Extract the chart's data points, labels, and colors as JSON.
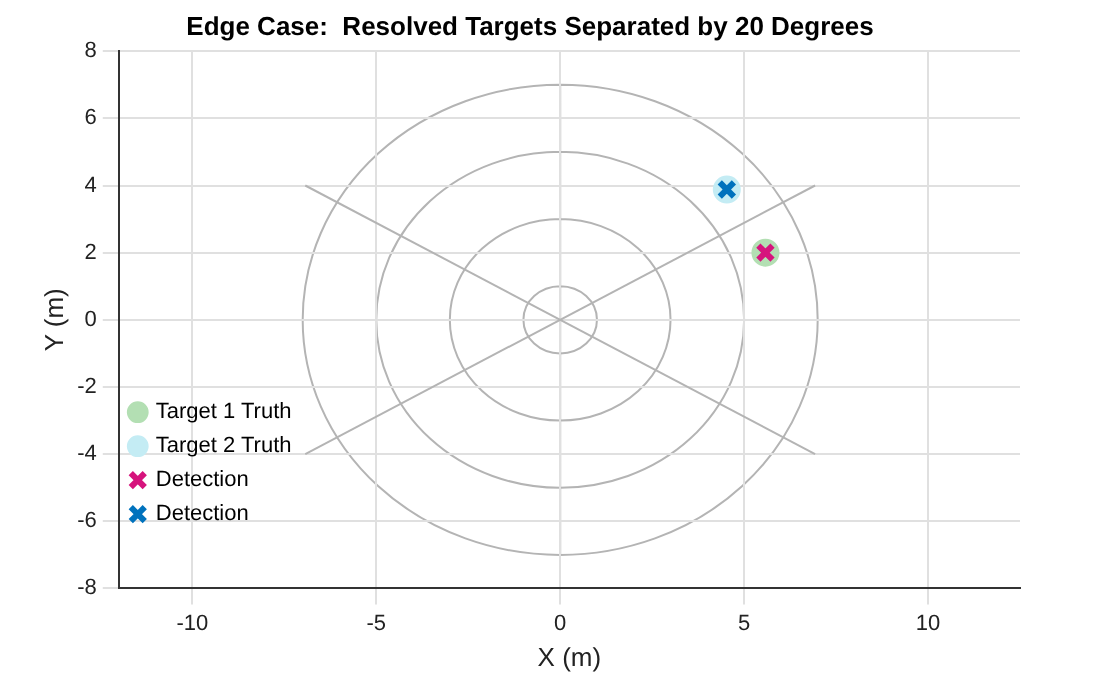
{
  "chart_data": {
    "type": "scatter",
    "title": "Edge Case:  Resolved Targets Separated by 20 Degrees",
    "xlabel": "X (m)",
    "ylabel": "Y (m)",
    "xlim": [
      -12,
      12.5
    ],
    "xticks": [
      -10,
      -5,
      0,
      5,
      10
    ],
    "ylim": [
      -8,
      8
    ],
    "yticks": [
      -8,
      -6,
      -4,
      -2,
      0,
      2,
      4,
      6,
      8
    ],
    "grid": true,
    "legend": "bottom left",
    "series": [
      {
        "type": "line",
        "color": "#b4b4b4",
        "marker": "none",
        "x": [
          -6.93,
          6.93
        ],
        "values": [
          4,
          -4
        ]
      },
      {
        "type": "line",
        "color": "#b4b4b4",
        "marker": "none",
        "x": [
          -6.93,
          6.93
        ],
        "values": [
          -4,
          4
        ]
      },
      {
        "name": "Target 1 Truth",
        "color": "#b3dfb3",
        "marker": "circle",
        "x": [
          5.58
        ],
        "values": [
          2.0
        ]
      },
      {
        "name": "Target 2 Truth",
        "color": "#c4ecf4",
        "marker": "circle",
        "x": [
          4.53
        ],
        "values": [
          3.88
        ]
      },
      {
        "name": "Detection",
        "color": "#d6147d",
        "marker": "cross",
        "x": [
          5.58
        ],
        "values": [
          2.0
        ]
      },
      {
        "name": "Detection",
        "color": "#0072bd",
        "marker": "cross",
        "x": [
          4.53
        ],
        "values": [
          3.88
        ]
      }
    ]
  }
}
